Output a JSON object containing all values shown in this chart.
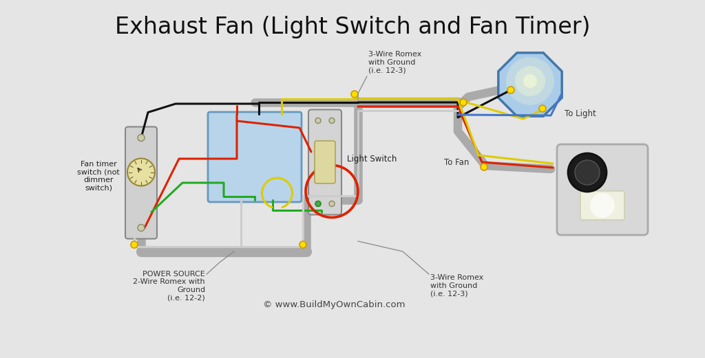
{
  "title": "Exhaust Fan (Light Switch and Fan Timer)",
  "background_color": "#e5e5e5",
  "title_fontsize": 24,
  "title_color": "#111111",
  "copyright_text": "© www.BuildMyOwnCabin.com",
  "labels": {
    "fan_timer": "Fan timer\nswitch (not\ndimmer\nswitch)",
    "light_switch": "Light Switch",
    "power_source": "POWER SOURCE\n2-Wire Romex with\nGround\n(i.e. 12-2)",
    "wire_3_top": "3-Wire Romex\nwith Ground\n(i.e. 12-3)",
    "wire_3_bottom": "3-Wire Romex\nwith Ground\n(i.e. 12-3)",
    "to_fan": "To Fan",
    "to_light": "To Light"
  },
  "colors": {
    "black": "#111111",
    "white_wire": "#cccccc",
    "red": "#dd2200",
    "green": "#22aa22",
    "yellow": "#ddcc00",
    "blue": "#4477cc",
    "gray_conduit": "#aaaaaa",
    "yellow_cap": "#ffdd00",
    "yellow_cap_edge": "#cc9900",
    "jbox_fill": "#b8d4ea",
    "jbox_edge": "#6699bb",
    "switch_fill": "#d4d4d4",
    "switch_edge": "#888888",
    "timer_fill": "#d0d0d0",
    "timer_edge": "#888888",
    "dial_fill": "#e8e0a0",
    "dial_edge": "#998833",
    "octagon_fill": "#aacce8",
    "octagon_edge": "#4477aa",
    "fan_fill": "#cccccc",
    "fan_edge": "#999999",
    "fan_motor": "#222222",
    "light_glow": "#ffffd0"
  }
}
